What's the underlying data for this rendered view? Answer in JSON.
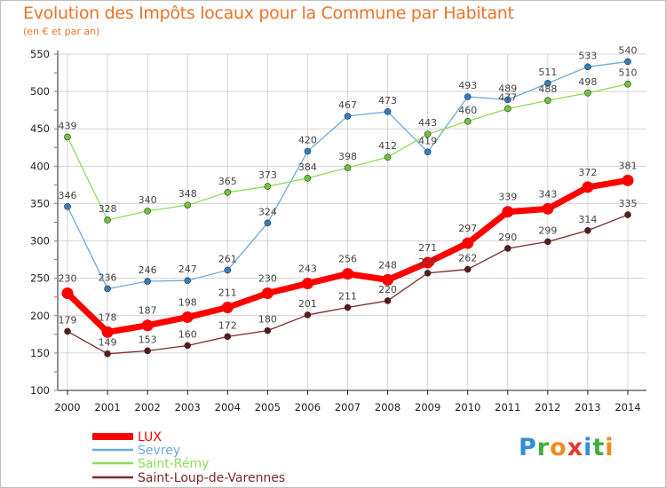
{
  "header": {
    "title": "Evolution des Impôts locaux pour la Commune par Habitant",
    "subtitle": "(en € et par an)"
  },
  "colors": {
    "title": "#e8742a",
    "grid": "#d4d4d4",
    "axis": "#222222"
  },
  "logo": {
    "text": "Proxiti",
    "letters": [
      {
        "ch": "P",
        "color": "#2f8fd6"
      },
      {
        "ch": "r",
        "color": "#3fae3f"
      },
      {
        "ch": "o",
        "color": "#f28b1f"
      },
      {
        "ch": "x",
        "color": "#e63a2e"
      },
      {
        "ch": "i",
        "color": "#2f8fd6"
      },
      {
        "ch": "t",
        "color": "#3fae3f"
      },
      {
        "ch": "i",
        "color": "#f28b1f"
      }
    ]
  },
  "chart_data": {
    "type": "line",
    "title": "Evolution des Impôts locaux pour la Commune par Habitant",
    "subtitle": "(en € et par an)",
    "xlabel": "",
    "ylabel": "",
    "ylim": [
      100,
      550
    ],
    "yticks": [
      100,
      150,
      200,
      250,
      300,
      350,
      400,
      450,
      500,
      550
    ],
    "x": [
      "2000",
      "2001",
      "2002",
      "2003",
      "2004",
      "2005",
      "2006",
      "2007",
      "2008",
      "2009",
      "2010",
      "2011",
      "2012",
      "2013",
      "2014"
    ],
    "grid": true,
    "legend_position": "bottom-left",
    "series": [
      {
        "name": "LUX",
        "color": "#ff0000",
        "marker": "#ff0000",
        "line_width": 7,
        "marker_r": 6.5,
        "label_color": "#444",
        "values": [
          230,
          178,
          187,
          198,
          211,
          230,
          243,
          256,
          248,
          271,
          297,
          339,
          343,
          372,
          381
        ]
      },
      {
        "name": "Sevrey",
        "color": "#6fa8dc",
        "marker": "#2f7fc4",
        "line_width": 1.3,
        "marker_r": 3,
        "label_color": "#444",
        "values": [
          346,
          236,
          246,
          247,
          261,
          324,
          420,
          467,
          473,
          419,
          493,
          489,
          511,
          533,
          540
        ]
      },
      {
        "name": "Saint-Rémy",
        "color": "#8ddc5a",
        "marker": "#6cc63a",
        "line_width": 1.3,
        "marker_r": 3,
        "label_color": "#444",
        "values": [
          439,
          328,
          340,
          348,
          365,
          373,
          384,
          398,
          412,
          443,
          460,
          477,
          488,
          498,
          510
        ]
      },
      {
        "name": "Saint-Loup-de-Varennes",
        "color": "#7a2a2a",
        "marker": "#5a1a1a",
        "line_width": 1.3,
        "marker_r": 3,
        "label_color": "#444",
        "values": [
          179,
          149,
          153,
          160,
          172,
          180,
          201,
          211,
          220,
          257,
          262,
          290,
          299,
          314,
          335
        ]
      }
    ]
  }
}
